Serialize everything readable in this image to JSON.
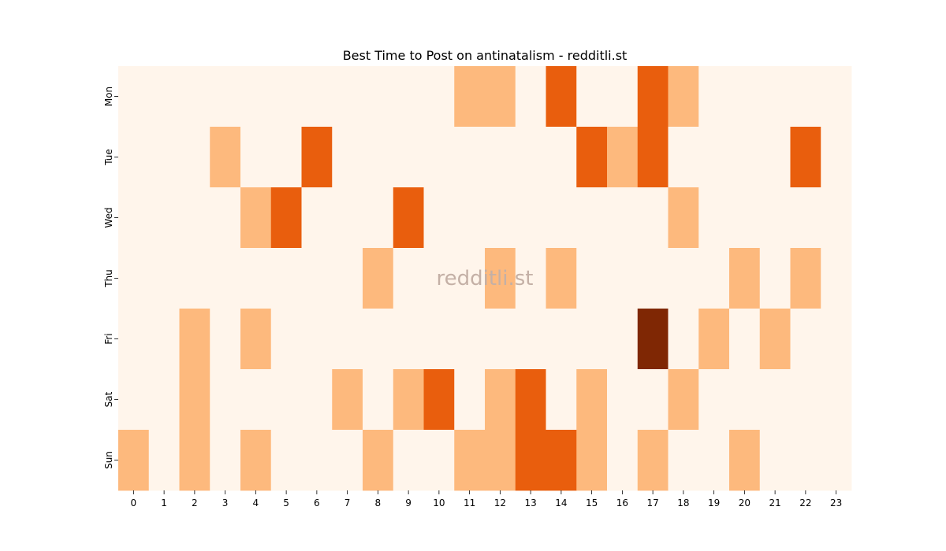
{
  "chart_data": {
    "type": "heatmap",
    "title": "Best Time to Post on antinatalism - redditli.st",
    "watermark": "redditli.st",
    "x_categories": [
      "0",
      "1",
      "2",
      "3",
      "4",
      "5",
      "6",
      "7",
      "8",
      "9",
      "10",
      "11",
      "12",
      "13",
      "14",
      "15",
      "16",
      "17",
      "18",
      "19",
      "20",
      "21",
      "22",
      "23"
    ],
    "y_categories": [
      "Mon",
      "Tue",
      "Wed",
      "Thu",
      "Fri",
      "Sat",
      "Sun"
    ],
    "values": [
      [
        0,
        0,
        0,
        0,
        0,
        0,
        0,
        0,
        0,
        0,
        0,
        1,
        1,
        0,
        2,
        0,
        0,
        2,
        1,
        0,
        0,
        0,
        0,
        0
      ],
      [
        0,
        0,
        0,
        1,
        0,
        0,
        2,
        0,
        0,
        0,
        0,
        0,
        0,
        0,
        0,
        2,
        1,
        2,
        0,
        0,
        0,
        0,
        2,
        0
      ],
      [
        0,
        0,
        0,
        0,
        1,
        2,
        0,
        0,
        0,
        2,
        0,
        0,
        0,
        0,
        0,
        0,
        0,
        0,
        1,
        0,
        0,
        0,
        0,
        0
      ],
      [
        0,
        0,
        0,
        0,
        0,
        0,
        0,
        0,
        1,
        0,
        0,
        0,
        1,
        0,
        1,
        0,
        0,
        0,
        0,
        0,
        1,
        0,
        1,
        0
      ],
      [
        0,
        0,
        1,
        0,
        1,
        0,
        0,
        0,
        0,
        0,
        0,
        0,
        0,
        0,
        0,
        0,
        0,
        3,
        0,
        1,
        0,
        1,
        0,
        0
      ],
      [
        0,
        0,
        1,
        0,
        0,
        0,
        0,
        1,
        0,
        1,
        2,
        0,
        1,
        2,
        0,
        1,
        0,
        0,
        1,
        0,
        0,
        0,
        0,
        0
      ],
      [
        1,
        0,
        1,
        0,
        1,
        0,
        0,
        0,
        1,
        0,
        0,
        1,
        1,
        2,
        2,
        1,
        0,
        1,
        0,
        0,
        1,
        0,
        0,
        0
      ]
    ],
    "color_scale": [
      "#fff5eb",
      "#fdb97d",
      "#e95e0d",
      "#7f2704"
    ],
    "colorbar": false
  }
}
